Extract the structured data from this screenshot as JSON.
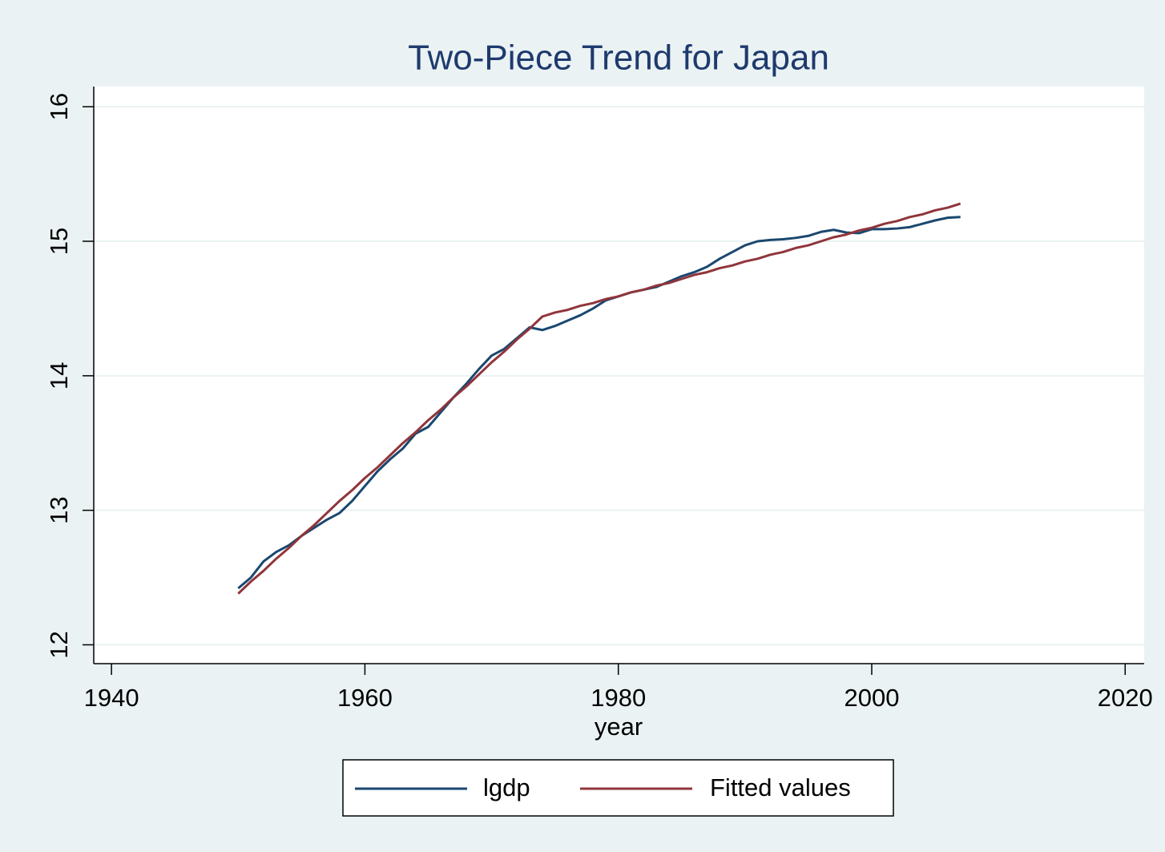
{
  "chart_data": {
    "type": "line",
    "title": "Two-Piece Trend for Japan",
    "x_label": "year",
    "x": [
      1950,
      1951,
      1952,
      1953,
      1954,
      1955,
      1956,
      1957,
      1958,
      1959,
      1960,
      1961,
      1962,
      1963,
      1964,
      1965,
      1966,
      1967,
      1968,
      1969,
      1970,
      1971,
      1972,
      1973,
      1974,
      1975,
      1976,
      1977,
      1978,
      1979,
      1980,
      1981,
      1982,
      1983,
      1984,
      1985,
      1986,
      1987,
      1988,
      1989,
      1990,
      1991,
      1992,
      1993,
      1994,
      1995,
      1996,
      1997,
      1998,
      1999,
      2000,
      2001,
      2002,
      2003,
      2004,
      2005,
      2006,
      2007
    ],
    "series": [
      {
        "name": "lgdp",
        "color": "#1a476f",
        "values": [
          12.42,
          12.5,
          12.62,
          12.69,
          12.74,
          12.81,
          12.87,
          12.93,
          12.98,
          13.07,
          13.18,
          13.29,
          13.38,
          13.46,
          13.57,
          13.62,
          13.73,
          13.84,
          13.94,
          14.05,
          14.15,
          14.2,
          14.28,
          14.36,
          14.34,
          14.37,
          14.41,
          14.45,
          14.5,
          14.56,
          14.59,
          14.62,
          14.64,
          14.66,
          14.7,
          14.74,
          14.77,
          14.81,
          14.87,
          14.92,
          14.97,
          15.0,
          15.01,
          15.015,
          15.025,
          15.04,
          15.07,
          15.085,
          15.065,
          15.06,
          15.09,
          15.09,
          15.095,
          15.105,
          15.13,
          15.155,
          15.175,
          15.18
        ]
      },
      {
        "name": "Fitted values",
        "color": "#90353b",
        "values": [
          12.38,
          12.47,
          12.55,
          12.64,
          12.72,
          12.81,
          12.89,
          12.98,
          13.07,
          13.15,
          13.24,
          13.32,
          13.41,
          13.5,
          13.58,
          13.67,
          13.75,
          13.84,
          13.92,
          14.01,
          14.1,
          14.18,
          14.27,
          14.35,
          14.44,
          14.47,
          14.49,
          14.52,
          14.54,
          14.57,
          14.59,
          14.62,
          14.64,
          14.67,
          14.69,
          14.72,
          14.75,
          14.77,
          14.8,
          14.82,
          14.85,
          14.87,
          14.9,
          14.92,
          14.95,
          14.97,
          15.0,
          15.03,
          15.05,
          15.08,
          15.1,
          15.13,
          15.15,
          15.18,
          15.2,
          15.23,
          15.25,
          15.28
        ]
      }
    ],
    "xlim": [
      1938.6,
      2021.5
    ],
    "xticks": [
      1940,
      1960,
      1980,
      2000,
      2020
    ],
    "ylim": [
      11.86,
      16.15
    ],
    "yticks": [
      12,
      13,
      14,
      15,
      16
    ],
    "grid": true,
    "legend": "bottom"
  }
}
